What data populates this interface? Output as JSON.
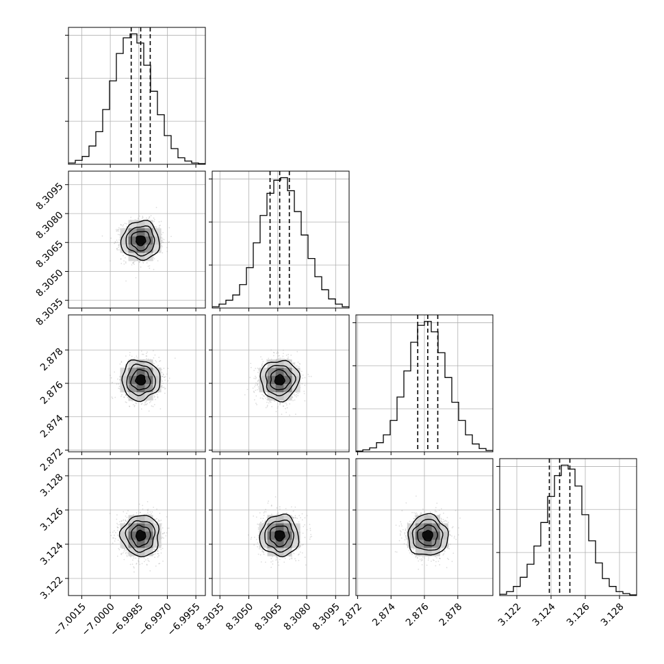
{
  "chart_data": {
    "type": "corner",
    "title": "",
    "show_grid": true,
    "parameters": [
      {
        "range": [
          -7.0022,
          -6.995
        ],
        "ticks": [
          -7.0015,
          -7.0,
          -6.9985,
          -6.997,
          -6.9955
        ],
        "tick_labels": [
          "−7.0015",
          "−7.0000",
          "−6.9985",
          "−6.9970",
          "−6.9955"
        ],
        "median": -6.9984,
        "lower": -6.9989,
        "upper": -6.9979,
        "hist": [
          0.01,
          0.03,
          0.06,
          0.14,
          0.25,
          0.42,
          0.64,
          0.85,
          0.97,
          1.0,
          0.93,
          0.76,
          0.56,
          0.38,
          0.22,
          0.12,
          0.05,
          0.025,
          0.01,
          0.005
        ]
      },
      {
        "range": [
          8.3031,
          8.3102
        ],
        "ticks": [
          8.3035,
          8.305,
          8.3065,
          8.308,
          8.3095
        ],
        "tick_labels": [
          "8.3035",
          "8.3050",
          "8.3065",
          "8.3080",
          "8.3095"
        ],
        "median": 8.3066,
        "lower": 8.3061,
        "upper": 8.3071,
        "hist": [
          0.01,
          0.03,
          0.06,
          0.1,
          0.18,
          0.31,
          0.5,
          0.71,
          0.88,
          0.98,
          1.0,
          0.9,
          0.74,
          0.56,
          0.38,
          0.24,
          0.14,
          0.07,
          0.03,
          0.01
        ]
      },
      {
        "range": [
          2.8719,
          2.8801
        ],
        "ticks": [
          2.872,
          2.874,
          2.876,
          2.878
        ],
        "tick_labels": [
          "2.872",
          "2.874",
          "2.876",
          "2.878"
        ],
        "median": 2.8762,
        "lower": 2.8756,
        "upper": 2.8768,
        "hist": [
          0.005,
          0.015,
          0.03,
          0.07,
          0.13,
          0.24,
          0.42,
          0.62,
          0.84,
          0.97,
          1.0,
          0.92,
          0.76,
          0.57,
          0.38,
          0.24,
          0.13,
          0.06,
          0.025,
          0.01
        ]
      },
      {
        "range": [
          3.121,
          3.129
        ],
        "ticks": [
          3.122,
          3.124,
          3.126,
          3.128
        ],
        "tick_labels": [
          "3.122",
          "3.124",
          "3.126",
          "3.128"
        ],
        "median": 3.1245,
        "lower": 3.1239,
        "upper": 3.1251,
        "hist": [
          0.01,
          0.03,
          0.07,
          0.14,
          0.24,
          0.38,
          0.56,
          0.76,
          0.92,
          1.0,
          0.97,
          0.84,
          0.62,
          0.42,
          0.25,
          0.13,
          0.07,
          0.03,
          0.015,
          0.005
        ]
      }
    ],
    "contour_levels": [
      0.5,
      1.0,
      1.5,
      2.0
    ],
    "scatter_color": "#9e9e9e",
    "line_color": "#000000",
    "grid_color": "#b0b0b0"
  }
}
